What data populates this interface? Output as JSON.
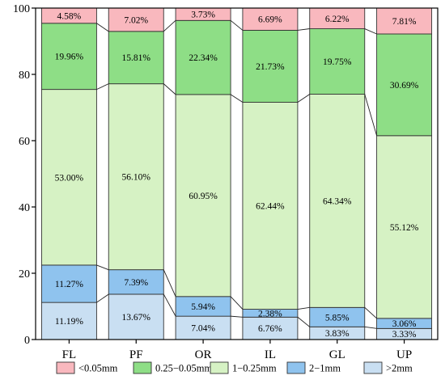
{
  "chart_data": {
    "type": "bar",
    "stacked": true,
    "categories": [
      "FL",
      "PF",
      "OR",
      "IL",
      "GL",
      "UP"
    ],
    "ylim": [
      0,
      100
    ],
    "yticks": [
      "0",
      "20",
      "40",
      "60",
      "80",
      "100"
    ],
    "legend_position": "bottom",
    "series": [
      {
        "name": ">2mm",
        "color": "#c9dff2",
        "values": [
          11.19,
          13.67,
          7.04,
          6.76,
          3.83,
          3.33
        ],
        "labels": [
          "11.19%",
          "13.67%",
          "7.04%",
          "6.76%",
          "3.83%",
          "3.33%"
        ]
      },
      {
        "name": "2−1mm",
        "color": "#8fc3ee",
        "values": [
          11.27,
          7.39,
          5.94,
          2.38,
          5.85,
          3.06
        ],
        "labels": [
          "11.27%",
          "7.39%",
          "5.94%",
          "2.38%",
          "5.85%",
          "3.06%"
        ]
      },
      {
        "name": "1−0.25mm",
        "color": "#d6f2c4",
        "values": [
          53.0,
          56.1,
          60.95,
          62.44,
          64.34,
          55.12
        ],
        "labels": [
          "53.00%",
          "56.10%",
          "60.95%",
          "62.44%",
          "64.34%",
          "55.12%"
        ]
      },
      {
        "name": "0.25−0.05mm",
        "color": "#8ede86",
        "values": [
          19.96,
          15.81,
          22.34,
          21.73,
          19.75,
          30.69
        ],
        "labels": [
          "19.96%",
          "15.81%",
          "22.34%",
          "21.73%",
          "19.75%",
          "30.69%"
        ]
      },
      {
        "name": "<0.05mm",
        "color": "#f9b8be",
        "values": [
          4.58,
          7.02,
          3.73,
          6.69,
          6.22,
          7.81
        ],
        "labels": [
          "4.58%",
          "7.02%",
          "3.73%",
          "6.69%",
          "6.22%",
          "7.81%"
        ]
      }
    ],
    "legend_order": [
      "<0.05mm",
      "0.25−0.05mm",
      "1−0.25mm",
      "2−1mm",
      ">2mm"
    ]
  }
}
